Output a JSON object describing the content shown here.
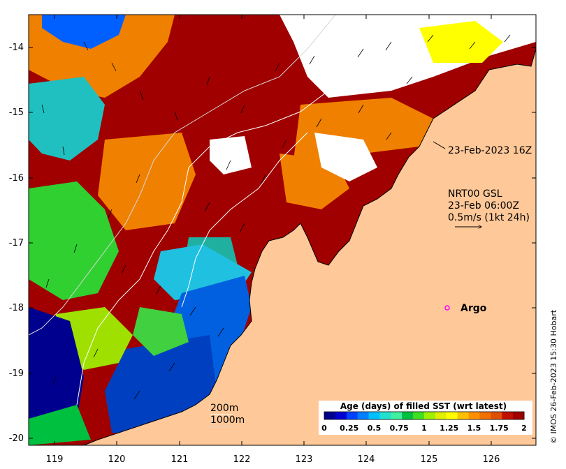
{
  "map": {
    "longitude_ticks": [
      "119",
      "120",
      "121",
      "122",
      "123",
      "124",
      "125",
      "126"
    ],
    "latitude_ticks": [
      "-14",
      "-15",
      "-16",
      "-17",
      "-18",
      "-19",
      "-20"
    ],
    "annotations": {
      "pass_time": "23-Feb-2023 16Z",
      "current_model": "NRT00 GSL",
      "current_time": "23-Feb 06:00Z",
      "current_scale": "0.5m/s (1kt 24h)",
      "argo_label": "Argo"
    },
    "depth_legend": [
      "200m",
      "1000m"
    ],
    "credit": "© IMOS 26-Feb-2023 15:30 Hobart",
    "colorbar": {
      "title": "Age (days) of filled SST (wrt latest)",
      "ticks": [
        "0",
        "0.25",
        "0.5",
        "0.75",
        "1",
        "1.25",
        "1.5",
        "1.75",
        "2"
      ],
      "colors": [
        "#00008f",
        "#0000d0",
        "#0040ff",
        "#0080ff",
        "#00bfff",
        "#20e0d0",
        "#40f0a0",
        "#00c040",
        "#40e020",
        "#a0f000",
        "#e0f000",
        "#ffff00",
        "#ffc000",
        "#ff9000",
        "#f07000",
        "#e05000",
        "#c01000",
        "#a00000"
      ]
    },
    "colors": {
      "land": "#fec898",
      "latest": "#a00000",
      "argo_marker": "#ff00ff"
    }
  }
}
